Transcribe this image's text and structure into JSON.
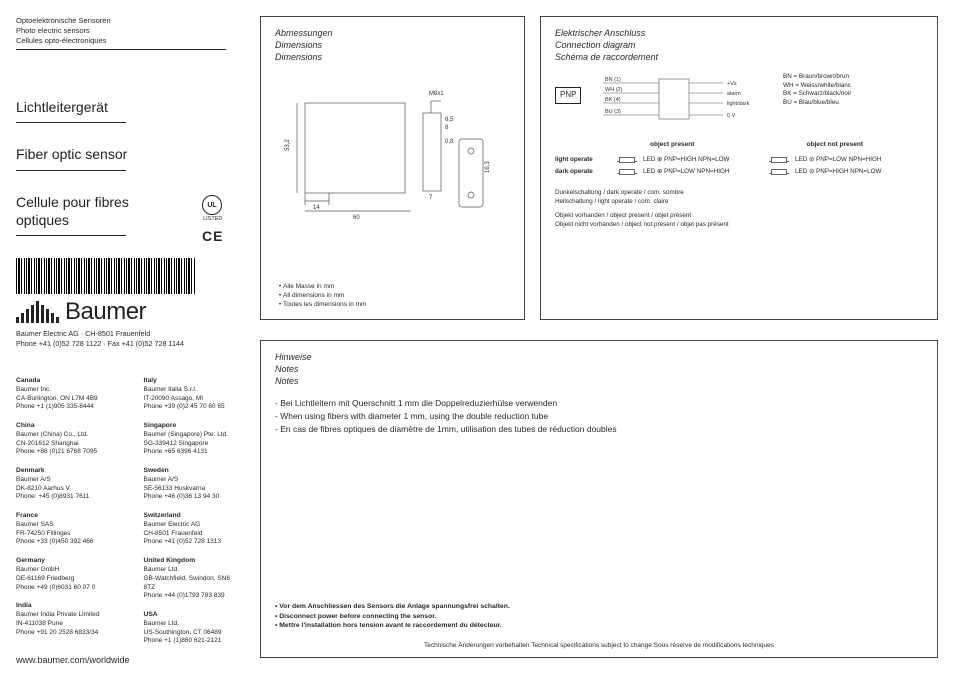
{
  "colors": {
    "text": "#2a2a2a",
    "rule": "#444444",
    "bg": "#ffffff",
    "accent": "#888888"
  },
  "header": {
    "lines": [
      "Optoelektronische Sensoren",
      "Photo electric sensors",
      "Cellules opto-électroniques"
    ]
  },
  "titles": {
    "de": "Lichtleitergerät",
    "en": "Fiber optic sensor",
    "fr": "Cellule pour fibres optiques"
  },
  "company": {
    "logo_text": "Baumer",
    "line1": "Baumer Electric AG · CH-8501 Frauenfeld",
    "line2": "Phone +41 (0)52 728 1122 · Fax +41 (0)52 728 1144",
    "web": "www.baumer.com/worldwide"
  },
  "cert": {
    "ul": "UL",
    "ul_sub": "LISTED",
    "ce": "CE"
  },
  "offices_left": [
    {
      "country": "Canada",
      "l1": "Baumer Inc.",
      "l2": "CA-Burlington, ON L7M 4B9",
      "l3": "Phone +1 (1)905 335-8444"
    },
    {
      "country": "China",
      "l1": "Baumer (China) Co., Ltd.",
      "l2": "CN-201612 Shanghai",
      "l3": "Phone +86 (0)21 6768 7095"
    },
    {
      "country": "Denmark",
      "l1": "Baumer A/S",
      "l2": "DK-8210 Aarhus V",
      "l3": "Phone: +45 (0)8931 7611"
    },
    {
      "country": "France",
      "l1": "Baumer SAS",
      "l2": "FR-74250 Fillinges",
      "l3": "Phone +33 (0)450 392 466"
    },
    {
      "country": "Germany",
      "l1": "Baumer GmbH",
      "l2": "DE-61169 Friedberg",
      "l3": "Phone +49 (0)6031 60 07 0"
    },
    {
      "country": "India",
      "l1": "Baumer India Private Limited",
      "l2": "IN-411038 Pune",
      "l3": "Phone +91 20 2528 6833/34"
    }
  ],
  "offices_right": [
    {
      "country": "Italy",
      "l1": "Baumer Italia S.r.l.",
      "l2": "IT-20090 Assago, MI",
      "l3": "Phone +39 (0)2 45 70 60 65"
    },
    {
      "country": "Singapore",
      "l1": "Baumer (Singapore) Pte. Ltd.",
      "l2": "SG-339412 Singapore",
      "l3": "Phone +65 6396 4131"
    },
    {
      "country": "Sweden",
      "l1": "Baumer A/S",
      "l2": "SE-56133 Huskvarna",
      "l3": "Phone +46 (0)36 13 94 30"
    },
    {
      "country": "Switzerland",
      "l1": "Baumer Electric AG",
      "l2": "CH-8501 Frauenfeld",
      "l3": "Phone +41 (0)52 728 1313"
    },
    {
      "country": "United Kingdom",
      "l1": "Baumer Ltd.",
      "l2": "GB-Watchfield, Swindon, SN6 8TZ",
      "l3": "Phone +44 (0)1793 783 839"
    },
    {
      "country": "USA",
      "l1": "Baumer Ltd.",
      "l2": "US-Southington, CT 06489",
      "l3": "Phone +1 (1)860 621-2121"
    }
  ],
  "dims_panel": {
    "heading": [
      "Abmessungen",
      "Dimensions",
      "Dimensions"
    ],
    "bullets": [
      "Alle Masse in mm",
      "All dimensions in mm",
      "Toutes les dimensions in mm"
    ],
    "labels": {
      "h": "53,2",
      "w": "60",
      "d": "14",
      "m8": "M8x1",
      "a": "8,5",
      "b": "8",
      "c": "0,8",
      "e": "7",
      "f": "16,3"
    }
  },
  "conn_panel": {
    "heading": [
      "Elektrischer Anschluss",
      "Connection diagram",
      "Schéma de raccordement"
    ],
    "pnp": "PNP",
    "wires": [
      {
        "label": "BN (1)",
        "right": "+Vs"
      },
      {
        "label": "WH (2)",
        "right": "alarm"
      },
      {
        "label": "BK (4)",
        "right": "light/dark"
      },
      {
        "label": "BU (3)",
        "right": "0 V"
      }
    ],
    "color_key": [
      "BN = Braun/brown/brun",
      "WH = Weiss/white/blanc",
      "BK = Schwarz/black/noir",
      "BU = Blau/blue/bleu"
    ],
    "col_present": "object present",
    "col_notpresent": "object not present",
    "rows": [
      {
        "mode": "light operate",
        "present": "LED ⊕ PNP=HIGH  NPN=LOW",
        "notpresent": "LED ⊘ PNP=LOW  NPN=HIGH"
      },
      {
        "mode": "dark operate",
        "present": "LED ⊕ PNP=LOW  NPN=HIGH",
        "notpresent": "LED ⊘ PNP=HIGH  NPN=LOW"
      }
    ],
    "notes": [
      "Dunkelschaltung / dark operate / com. sombre",
      "Hellschaltung / light operate / com. claire",
      "Objekt vorhanden / object present / objet présent",
      "Objekt nicht vorhanden / object not present / objet pas présent"
    ]
  },
  "notes_panel": {
    "heading": [
      "Hinweise",
      "Notes",
      "Notes"
    ],
    "body": [
      "- Bei Lichtleitern mit Querschnitt 1 mm die Doppelreduzierhülse verwenden",
      "- When using fibers with diameter 1 mm, using the double reduction tube",
      "- En cas de fibres optiques de diamètre de 1mm, utilisation des tubes de réduction doubles"
    ],
    "warn": [
      "• Vor dem Anschliessen des Sensors die Anlage spannungsfrei schalten.",
      "• Disconnect power before connecting the sensor.",
      "• Mettre l'installation hors tension avant le raccordement du détecteur."
    ],
    "footer": "Technische Änderungen vorbehalten   Technical specifications subject to change   Sous réserve de modifications techniques"
  }
}
